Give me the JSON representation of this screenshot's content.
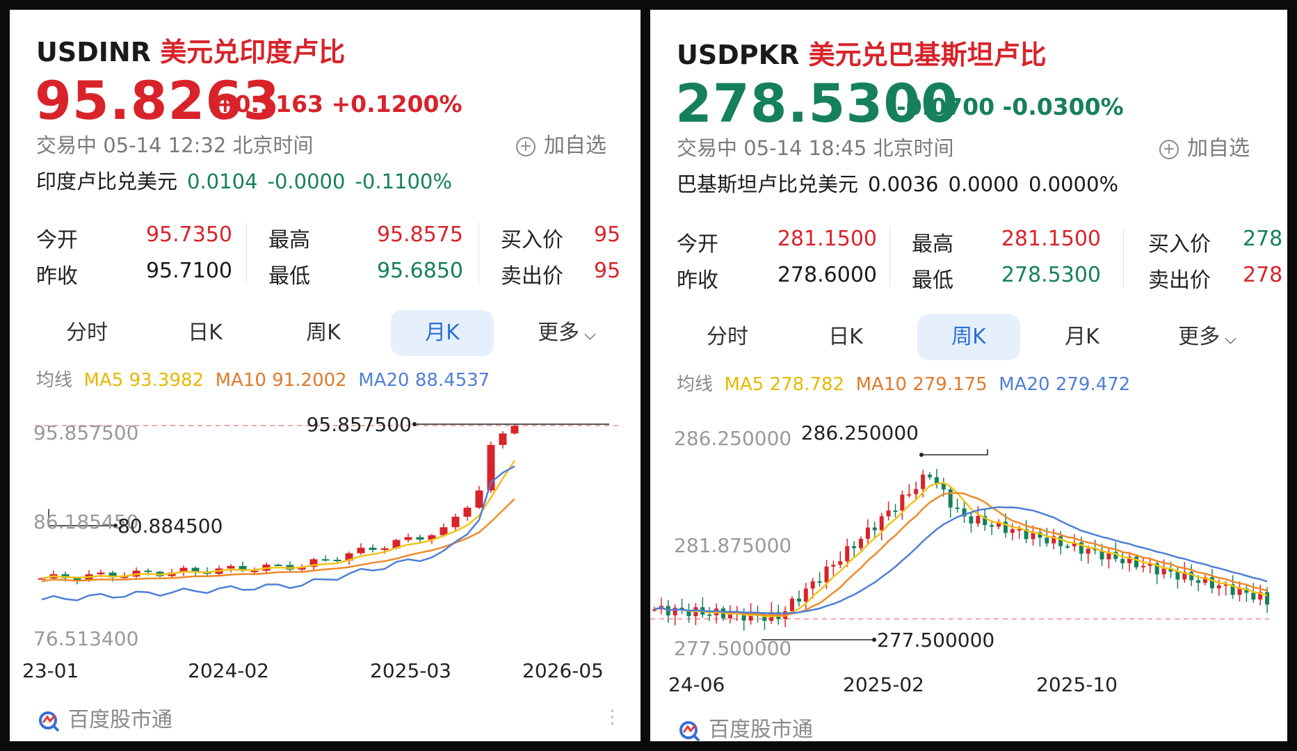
{
  "panels": [
    {
      "symbol": "USDINR",
      "name_cn": "美元兑印度卢比",
      "price": "95.8263",
      "change": "+0.1163",
      "change_pct": "+0.1200%",
      "direction": "up",
      "status": "交易中 05-14 12:32 北京时间",
      "add_watch": "加自选",
      "reverse": {
        "label": "印度卢比兑美元",
        "price": "0.0104",
        "change": "-0.0000",
        "pct": "-0.1100%"
      },
      "stats": {
        "open_label": "今开",
        "open": "95.7350",
        "prev_label": "昨收",
        "prev": "95.7100",
        "high_label": "最高",
        "high": "95.8575",
        "low_label": "最低",
        "low": "95.6850",
        "bid_label": "买入价",
        "bid": "95",
        "ask_label": "卖出价",
        "ask": "95"
      },
      "tabs": [
        "分时",
        "日K",
        "周K",
        "月K",
        "更多"
      ],
      "active_tab": 3,
      "ma": {
        "label": "均线",
        "ma5": "MA5 93.3982",
        "ma10": "MA10 91.2002",
        "ma20": "MA20 88.4537"
      },
      "chart": {
        "y_labels": [
          "95.857500",
          "86.185450",
          "76.513400"
        ],
        "max_label": "95.857500",
        "min_label": "80.884500",
        "x_labels": [
          "23-01",
          "2024-02",
          "2025-03",
          "2026-05"
        ]
      },
      "brand": "百度股市通"
    },
    {
      "symbol": "USDPKR",
      "name_cn": "美元兑巴基斯坦卢比",
      "price": "278.5300",
      "change": "-0.0700",
      "change_pct": "-0.0300%",
      "direction": "down",
      "status": "交易中 05-14 18:45 北京时间",
      "add_watch": "加自选",
      "reverse": {
        "label": "巴基斯坦卢比兑美元",
        "price": "0.0036",
        "change": "0.0000",
        "pct": "0.0000%"
      },
      "stats": {
        "open_label": "今开",
        "open": "281.1500",
        "prev_label": "昨收",
        "prev": "278.6000",
        "high_label": "最高",
        "high": "281.1500",
        "low_label": "最低",
        "low": "278.5300",
        "bid_label": "买入价",
        "bid": "278",
        "ask_label": "卖出价",
        "ask": "278"
      },
      "tabs": [
        "分时",
        "日K",
        "周K",
        "月K",
        "更多"
      ],
      "active_tab": 2,
      "ma": {
        "label": "均线",
        "ma5": "MA5 278.782",
        "ma10": "MA10 279.175",
        "ma20": "MA20 279.472"
      },
      "chart": {
        "y_labels": [
          "286.250000",
          "281.875000",
          "277.500000"
        ],
        "max_label": "286.250000",
        "min_label": "277.500000",
        "x_labels": [
          "24-06",
          "2025-02",
          "2025-10"
        ]
      },
      "brand": "百度股市通"
    }
  ],
  "colors": {
    "up": "#d8232a",
    "down": "#16805a",
    "ma5": "#f0c419",
    "ma10": "#ee8a2a",
    "ma20": "#4f7fd6"
  }
}
